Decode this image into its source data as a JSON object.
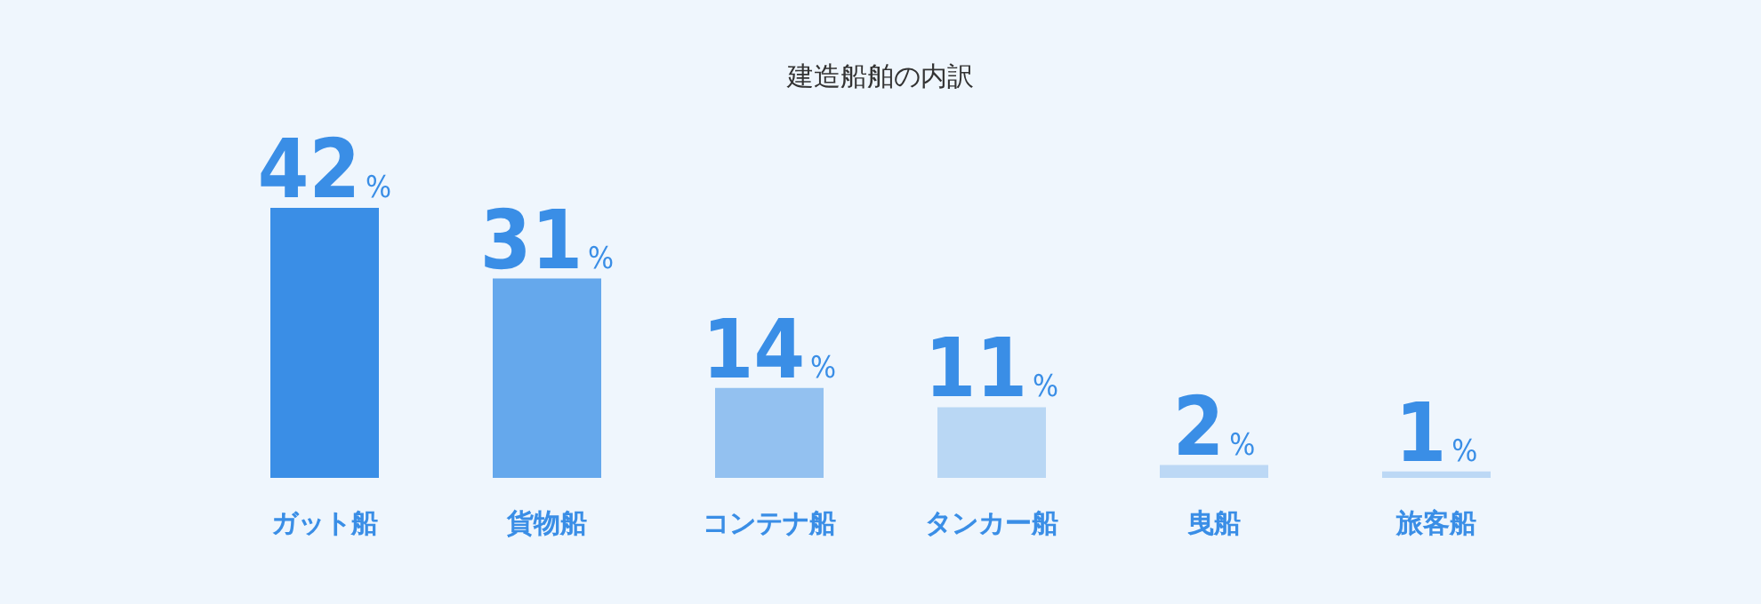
{
  "chart_data": {
    "type": "bar",
    "title": "建造船舶の内訳",
    "categories": [
      "ガット船",
      "貨物船",
      "コンテナ船",
      "タンカー船",
      "曳船",
      "旅客船"
    ],
    "values": [
      42,
      31,
      14,
      11,
      2,
      1
    ],
    "colors": [
      "#3a8ee6",
      "#65a8ec",
      "#93c1f0",
      "#b9d7f4",
      "#bcd8f5",
      "#bcd8f5"
    ],
    "value_labels": [
      "42%",
      "31%",
      "14%",
      "11%",
      "2%",
      "1%"
    ]
  }
}
